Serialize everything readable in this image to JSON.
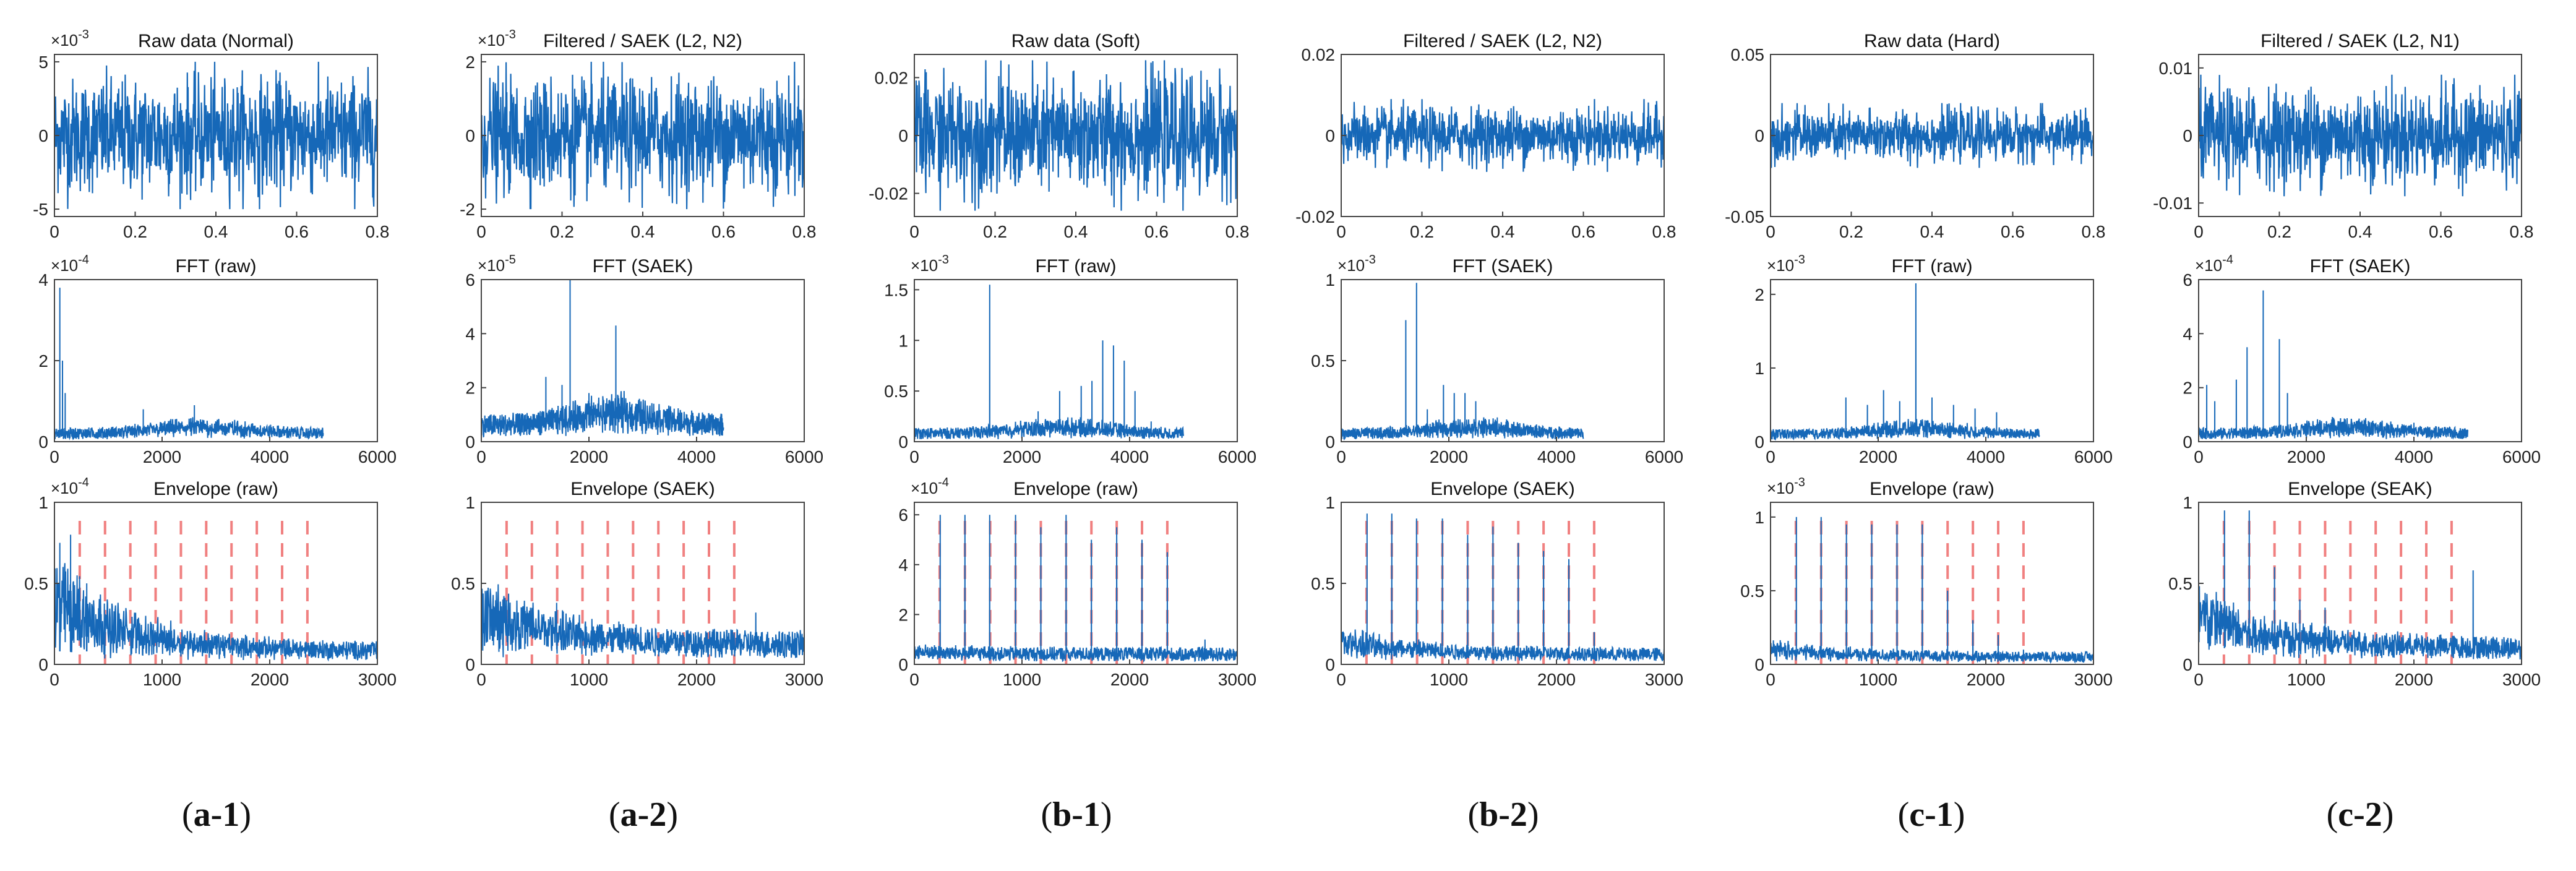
{
  "figure": {
    "colors": {
      "signal": "#1668b8",
      "fault_marker": "#f08080",
      "axes": "#444444"
    },
    "columns": [
      {
        "caption": {
          "letter": "a",
          "num": "1"
        },
        "panels": [
          {
            "title": "Raw data (Normal)",
            "exponent": "×10",
            "exponent_power": "-3",
            "yticks": [
              "5",
              "0",
              "-5"
            ],
            "xticks": [
              "0",
              "0.2",
              "0.4",
              "0.6",
              "0.8"
            ]
          },
          {
            "title": "FFT (raw)",
            "exponent": "×10",
            "exponent_power": "-4",
            "yticks": [
              "4",
              "2",
              "0"
            ],
            "xticks": [
              "0",
              "2000",
              "4000",
              "6000"
            ]
          },
          {
            "title": "Envelope (raw)",
            "exponent": "×10",
            "exponent_power": "-4",
            "yticks": [
              "1",
              "0.5",
              "0"
            ],
            "xticks": [
              "0",
              "1000",
              "2000",
              "3000"
            ]
          }
        ]
      },
      {
        "caption": {
          "letter": "a",
          "num": "2"
        },
        "panels": [
          {
            "title": "Filtered / SAEK (L2, N2)",
            "exponent": "×10",
            "exponent_power": "-3",
            "yticks": [
              "2",
              "0",
              "-2"
            ],
            "xticks": [
              "0",
              "0.2",
              "0.4",
              "0.6",
              "0.8"
            ]
          },
          {
            "title": "FFT (SAEK)",
            "exponent": "×10",
            "exponent_power": "-5",
            "yticks": [
              "6",
              "4",
              "2",
              "0"
            ],
            "xticks": [
              "0",
              "2000",
              "4000",
              "6000"
            ]
          },
          {
            "title": "Envelope (SAEK)",
            "exponent": "",
            "exponent_power": "",
            "yticks": [
              "1",
              "0.5",
              "0"
            ],
            "xticks": [
              "0",
              "1000",
              "2000",
              "3000"
            ]
          }
        ]
      },
      {
        "caption": {
          "letter": "b",
          "num": "1"
        },
        "panels": [
          {
            "title": "Raw data (Soft)",
            "exponent": "",
            "exponent_power": "",
            "yticks": [
              "0.02",
              "0",
              "-0.02"
            ],
            "xticks": [
              "0",
              "0.2",
              "0.4",
              "0.6",
              "0.8"
            ]
          },
          {
            "title": "FFT (raw)",
            "exponent": "×10",
            "exponent_power": "-3",
            "yticks": [
              "1.5",
              "1",
              "0.5",
              "0"
            ],
            "xticks": [
              "0",
              "2000",
              "4000",
              "6000"
            ]
          },
          {
            "title": "Envelope (raw)",
            "exponent": "×10",
            "exponent_power": "-4",
            "yticks": [
              "6",
              "4",
              "2",
              "0"
            ],
            "xticks": [
              "0",
              "1000",
              "2000",
              "3000"
            ]
          }
        ]
      },
      {
        "caption": {
          "letter": "b",
          "num": "2"
        },
        "panels": [
          {
            "title": "Filtered / SAEK (L2, N2)",
            "exponent": "",
            "exponent_power": "",
            "yticks": [
              "0.02",
              "0",
              "-0.02"
            ],
            "xticks": [
              "0",
              "0.2",
              "0.4",
              "0.6",
              "0.8"
            ]
          },
          {
            "title": "FFT (SAEK)",
            "exponent": "×10",
            "exponent_power": "-3",
            "yticks": [
              "1",
              "0.5",
              "0"
            ],
            "xticks": [
              "0",
              "2000",
              "4000",
              "6000"
            ]
          },
          {
            "title": "Envelope (SAEK)",
            "exponent": "",
            "exponent_power": "",
            "yticks": [
              "1",
              "0.5",
              "0"
            ],
            "xticks": [
              "0",
              "1000",
              "2000",
              "3000"
            ]
          }
        ]
      },
      {
        "caption": {
          "letter": "c",
          "num": "1"
        },
        "panels": [
          {
            "title": "Raw data (Hard)",
            "exponent": "",
            "exponent_power": "",
            "yticks": [
              "0.05",
              "0",
              "-0.05"
            ],
            "xticks": [
              "0",
              "0.2",
              "0.4",
              "0.6",
              "0.8"
            ]
          },
          {
            "title": "FFT (raw)",
            "exponent": "×10",
            "exponent_power": "-3",
            "yticks": [
              "2",
              "1",
              "0"
            ],
            "xticks": [
              "0",
              "2000",
              "4000",
              "6000"
            ]
          },
          {
            "title": "Envelope (raw)",
            "exponent": "×10",
            "exponent_power": "-3",
            "yticks": [
              "1",
              "0.5",
              "0"
            ],
            "xticks": [
              "0",
              "1000",
              "2000",
              "3000"
            ]
          }
        ]
      },
      {
        "caption": {
          "letter": "c",
          "num": "2"
        },
        "panels": [
          {
            "title": "Filtered / SAEK (L2, N1)",
            "exponent": "",
            "exponent_power": "",
            "yticks": [
              "0.01",
              "0",
              "-0.01"
            ],
            "xticks": [
              "0",
              "0.2",
              "0.4",
              "0.6",
              "0.8"
            ]
          },
          {
            "title": "FFT (SAEK)",
            "exponent": "×10",
            "exponent_power": "-4",
            "yticks": [
              "6",
              "4",
              "2",
              "0"
            ],
            "xticks": [
              "0",
              "2000",
              "4000",
              "6000"
            ]
          },
          {
            "title": "Envelope (SEAK)",
            "exponent": "",
            "exponent_power": "",
            "yticks": [
              "1",
              "0.5",
              "0"
            ],
            "xticks": [
              "0",
              "1000",
              "2000",
              "3000"
            ]
          }
        ]
      }
    ]
  },
  "chart_data": [
    {
      "type": "line",
      "title": "Raw data (Normal)",
      "xlabel": "",
      "ylabel": "",
      "xlim": [
        0,
        0.8
      ],
      "ylim": [
        -0.0055,
        0.0055
      ],
      "signal_amplitude": 0.005
    },
    {
      "type": "line",
      "title": "Filtered / SAEK (L2, N2)",
      "xlabel": "",
      "ylabel": "",
      "xlim": [
        0,
        0.8
      ],
      "ylim": [
        -0.0022,
        0.0022
      ],
      "signal_amplitude": 0.002
    },
    {
      "type": "line",
      "title": "Raw data (Soft)",
      "xlabel": "",
      "ylabel": "",
      "xlim": [
        0,
        0.8
      ],
      "ylim": [
        -0.028,
        0.028
      ],
      "signal_amplitude": 0.026
    },
    {
      "type": "line",
      "title": "Filtered / SAEK (L2, N2)",
      "xlabel": "",
      "ylabel": "",
      "xlim": [
        0,
        0.8
      ],
      "ylim": [
        -0.02,
        0.02
      ],
      "signal_amplitude": 0.009
    },
    {
      "type": "line",
      "title": "Raw data (Hard)",
      "xlabel": "",
      "ylabel": "",
      "xlim": [
        0,
        0.8
      ],
      "ylim": [
        -0.05,
        0.05
      ],
      "signal_amplitude": 0.02
    },
    {
      "type": "line",
      "title": "Filtered / SAEK (L2, N1)",
      "xlabel": "",
      "ylabel": "",
      "xlim": [
        0,
        0.8
      ],
      "ylim": [
        -0.012,
        0.012
      ],
      "signal_amplitude": 0.009
    },
    {
      "type": "line",
      "title": "FFT (raw)",
      "xlabel": "",
      "ylabel": "",
      "xlim": [
        0,
        6000
      ],
      "ylim": [
        0,
        0.0004
      ],
      "x_data_max": 5000,
      "noise_floor": 2e-05,
      "peaks": [
        [
          100,
          0.00038
        ],
        [
          150,
          0.0002
        ],
        [
          200,
          0.00012
        ],
        [
          1650,
          8e-05
        ],
        [
          2600,
          9e-05
        ],
        [
          3400,
          5e-05
        ]
      ]
    },
    {
      "type": "line",
      "title": "FFT (SAEK)",
      "xlabel": "",
      "ylabel": "",
      "xlim": [
        0,
        6000
      ],
      "ylim": [
        0,
        6e-05
      ],
      "x_data_max": 4500,
      "noise_floor": 6e-06,
      "peaks": [
        [
          1200,
          2.4e-05
        ],
        [
          1500,
          2.1e-05
        ],
        [
          1650,
          6e-05
        ],
        [
          2000,
          1.8e-05
        ],
        [
          2500,
          4.3e-05
        ],
        [
          2800,
          1.4e-05
        ]
      ]
    },
    {
      "type": "line",
      "title": "FFT (raw)",
      "xlabel": "",
      "ylabel": "",
      "xlim": [
        0,
        6000
      ],
      "ylim": [
        0,
        0.0016
      ],
      "x_data_max": 5000,
      "noise_floor": 8e-05,
      "peaks": [
        [
          1400,
          0.00155
        ],
        [
          2300,
          0.0003
        ],
        [
          2700,
          0.0005
        ],
        [
          3100,
          0.00055
        ],
        [
          3300,
          0.0006
        ],
        [
          3500,
          0.001
        ],
        [
          3700,
          0.00095
        ],
        [
          3900,
          0.0008
        ],
        [
          4100,
          0.0005
        ],
        [
          4400,
          0.0002
        ]
      ]
    },
    {
      "type": "line",
      "title": "FFT (SAEK)",
      "xlabel": "",
      "ylabel": "",
      "xlim": [
        0,
        6000
      ],
      "ylim": [
        0,
        0.001
      ],
      "x_data_max": 4500,
      "noise_floor": 5e-05,
      "peaks": [
        [
          1200,
          0.00075
        ],
        [
          1400,
          0.00098
        ],
        [
          1600,
          0.0002
        ],
        [
          1900,
          0.00035
        ],
        [
          2100,
          0.0003
        ],
        [
          2300,
          0.0003
        ],
        [
          2500,
          0.00025
        ],
        [
          2900,
          0.00015
        ]
      ]
    },
    {
      "type": "line",
      "title": "FFT (raw)",
      "xlabel": "",
      "ylabel": "",
      "xlim": [
        0,
        6000
      ],
      "ylim": [
        0,
        0.0022
      ],
      "x_data_max": 5000,
      "noise_floor": 0.0001,
      "peaks": [
        [
          1400,
          0.0006
        ],
        [
          1800,
          0.0005
        ],
        [
          2100,
          0.0007
        ],
        [
          2400,
          0.00055
        ],
        [
          2700,
          0.00215
        ],
        [
          3000,
          0.0006
        ],
        [
          3400,
          0.0005
        ],
        [
          3800,
          0.00045
        ],
        [
          4200,
          0.0004
        ]
      ]
    },
    {
      "type": "line",
      "title": "FFT (SAEK)",
      "xlabel": "",
      "ylabel": "",
      "xlim": [
        0,
        6000
      ],
      "ylim": [
        0,
        0.0006
      ],
      "x_data_max": 5000,
      "noise_floor": 3e-05,
      "peaks": [
        [
          150,
          0.00021
        ],
        [
          300,
          0.00015
        ],
        [
          700,
          0.00023
        ],
        [
          900,
          0.00035
        ],
        [
          1200,
          0.00056
        ],
        [
          1500,
          0.00038
        ],
        [
          1650,
          0.00018
        ],
        [
          3600,
          6e-05
        ],
        [
          4000,
          7e-05
        ]
      ]
    },
    {
      "type": "line",
      "title": "Envelope (raw)",
      "xlabel": "",
      "ylabel": "",
      "xlim": [
        0,
        3000
      ],
      "ylim": [
        0,
        0.0001
      ],
      "noise_floor": 8e-06,
      "decay": 3e-05,
      "peaks": [
        [
          50,
          7.5e-05
        ],
        [
          150,
          8e-05
        ],
        [
          300,
          5e-05
        ]
      ],
      "fault_markers": [
        235,
        470,
        705,
        940,
        1175,
        1410,
        1645,
        1880,
        2115,
        2350
      ]
    },
    {
      "type": "line",
      "title": "Envelope (SAEK)",
      "xlabel": "",
      "ylabel": "",
      "xlim": [
        0,
        3000
      ],
      "ylim": [
        0,
        1
      ],
      "noise_floor": 0.12,
      "decay": 0.2,
      "peaks": [
        [
          200,
          0.4
        ],
        [
          700,
          0.38
        ],
        [
          2550,
          0.32
        ]
      ],
      "fault_markers": [
        235,
        470,
        705,
        940,
        1175,
        1410,
        1645,
        1880,
        2115,
        2350
      ]
    },
    {
      "type": "line",
      "title": "Envelope (raw)",
      "xlabel": "",
      "ylabel": "",
      "xlim": [
        0,
        3000
      ],
      "ylim": [
        0,
        0.00065
      ],
      "noise_floor": 4e-05,
      "decay": 1e-05,
      "peaks": [
        [
          240,
          0.0006
        ],
        [
          470,
          0.0006
        ],
        [
          700,
          0.0006
        ],
        [
          940,
          0.0006
        ],
        [
          1175,
          0.00055
        ],
        [
          1410,
          0.0006
        ],
        [
          1645,
          0.0005
        ],
        [
          1880,
          0.00055
        ],
        [
          2115,
          0.0005
        ],
        [
          2350,
          0.00045
        ],
        [
          2700,
          0.0001
        ]
      ],
      "fault_markers": [
        235,
        470,
        705,
        940,
        1175,
        1410,
        1645,
        1880,
        2115,
        2350
      ]
    },
    {
      "type": "line",
      "title": "Envelope (SAEK)",
      "xlabel": "",
      "ylabel": "",
      "xlim": [
        0,
        3000
      ],
      "ylim": [
        0,
        1
      ],
      "noise_floor": 0.06,
      "decay": 0.08,
      "peaks": [
        [
          240,
          0.93
        ],
        [
          470,
          0.93
        ],
        [
          700,
          0.9
        ],
        [
          940,
          0.9
        ],
        [
          1175,
          0.8
        ],
        [
          1410,
          0.85
        ],
        [
          1645,
          0.75
        ],
        [
          1880,
          0.7
        ],
        [
          2115,
          0.65
        ],
        [
          2350,
          0.2
        ]
      ],
      "fault_markers": [
        235,
        470,
        705,
        940,
        1175,
        1410,
        1645,
        1880,
        2115,
        2350
      ]
    },
    {
      "type": "line",
      "title": "Envelope (raw)",
      "xlabel": "",
      "ylabel": "",
      "xlim": [
        0,
        3000
      ],
      "ylim": [
        0,
        0.0011
      ],
      "noise_floor": 5e-05,
      "decay": 5e-05,
      "peaks": [
        [
          240,
          0.001
        ],
        [
          470,
          0.001
        ],
        [
          705,
          0.00095
        ],
        [
          940,
          0.00095
        ],
        [
          1175,
          0.00095
        ],
        [
          1410,
          0.00095
        ],
        [
          1645,
          0.0005
        ],
        [
          1880,
          0.0003
        ],
        [
          2115,
          0.0002
        ],
        [
          2350,
          0.0001
        ]
      ],
      "fault_markers": [
        235,
        470,
        705,
        940,
        1175,
        1410,
        1645,
        1880,
        2115,
        2350
      ]
    },
    {
      "type": "line",
      "title": "Envelope (SEAK)",
      "xlabel": "",
      "ylabel": "",
      "xlim": [
        0,
        3000
      ],
      "ylim": [
        0,
        1
      ],
      "noise_floor": 0.1,
      "decay": 0.2,
      "peaks": [
        [
          240,
          0.95
        ],
        [
          470,
          0.95
        ],
        [
          705,
          0.6
        ],
        [
          940,
          0.4
        ],
        [
          1175,
          0.35
        ],
        [
          2550,
          0.58
        ]
      ],
      "fault_markers": [
        235,
        470,
        705,
        940,
        1175,
        1410,
        1645,
        1880,
        2115,
        2350
      ]
    }
  ]
}
